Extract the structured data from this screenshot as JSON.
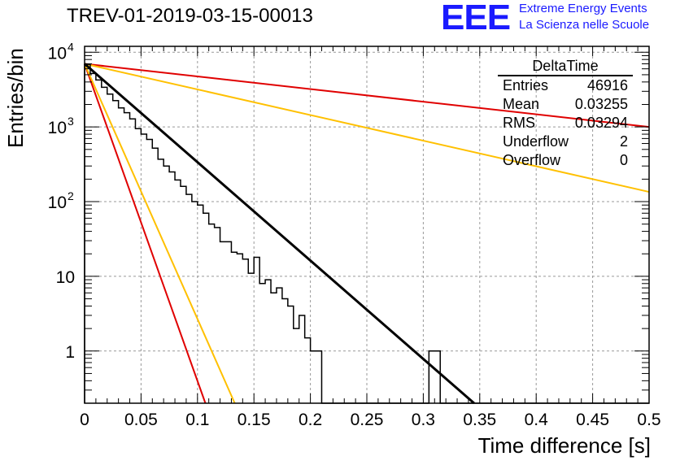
{
  "header": {
    "title": "TREV-01-2019-03-15-00013",
    "logo_text": "EEE",
    "logo_line1": "Extreme Energy Events",
    "logo_line2": "La Scienza nelle Scuole"
  },
  "stats_box": {
    "title": "DeltaTime",
    "rows": [
      {
        "label": "Entries",
        "value": "46916"
      },
      {
        "label": "Mean",
        "value": "0.03255"
      },
      {
        "label": "RMS",
        "value": "0.03294"
      },
      {
        "label": "Underflow",
        "value": "2"
      },
      {
        "label": "Overflow",
        "value": "0"
      }
    ]
  },
  "chart_data": {
    "type": "histogram",
    "xlabel": "Time difference [s]",
    "ylabel": "Entries/bin",
    "xlim": [
      0,
      0.5
    ],
    "ylim": [
      0.2,
      12000
    ],
    "yscale": "log",
    "grid": true,
    "x_ticks": [
      "0",
      "0.05",
      "0.1",
      "0.15",
      "0.2",
      "0.25",
      "0.3",
      "0.35",
      "0.4",
      "0.45",
      "0.5"
    ],
    "y_ticks": [
      "10^4",
      "10^3",
      "10^2",
      "10",
      "1"
    ],
    "bin_width": 0.005,
    "histogram_values": [
      6900,
      5200,
      4250,
      3400,
      2750,
      2250,
      1800,
      1550,
      1280,
      950,
      800,
      680,
      520,
      370,
      300,
      250,
      195,
      160,
      125,
      100,
      90,
      70,
      50,
      45,
      29,
      29,
      21,
      20,
      17,
      11,
      18,
      8,
      9,
      6,
      7,
      5,
      4,
      2,
      3,
      1.5,
      1,
      1,
      0.1,
      0,
      0,
      0,
      0,
      0,
      0,
      0,
      0,
      0.1,
      0,
      0,
      0,
      0,
      0,
      0,
      0,
      0,
      0,
      1,
      1,
      0,
      0,
      0,
      0,
      0,
      0,
      0,
      0,
      0,
      0,
      0,
      0,
      0,
      0,
      0,
      0,
      0,
      0,
      0,
      0,
      0,
      0,
      0,
      0,
      0,
      0,
      0,
      0,
      0,
      0,
      0,
      0,
      0,
      0,
      0,
      0,
      0
    ],
    "histogram_values_note_free": true,
    "series": [
      {
        "name": "",
        "kind": "fit",
        "color": "#000000",
        "points": [
          [
            0,
            7000
          ],
          [
            0.345,
            0.2
          ]
        ]
      },
      {
        "name": "",
        "kind": "curve",
        "color": "#e00000",
        "points": [
          [
            0,
            7000
          ],
          [
            0.5,
            1000
          ]
        ]
      },
      {
        "name": "",
        "kind": "curve",
        "color": "#ffc000",
        "points": [
          [
            0,
            7000
          ],
          [
            0.5,
            135
          ]
        ]
      },
      {
        "name": "",
        "kind": "curve",
        "color": "#e00000",
        "points": [
          [
            0,
            7000
          ],
          [
            0.107,
            0.2
          ]
        ]
      },
      {
        "name": "",
        "kind": "curve",
        "color": "#ffc000",
        "points": [
          [
            0,
            7000
          ],
          [
            0.133,
            0.2
          ]
        ]
      }
    ]
  }
}
